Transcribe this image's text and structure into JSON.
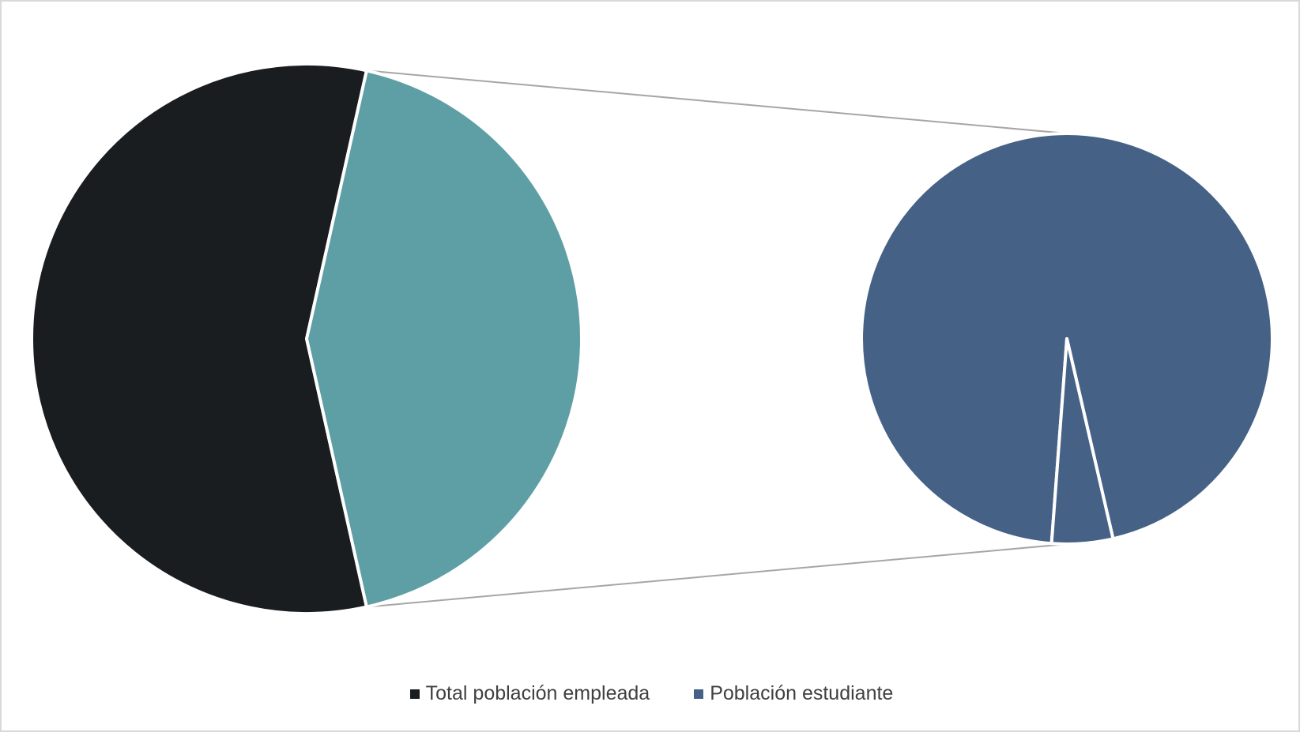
{
  "chart_data": {
    "type": "pie",
    "subtype": "pie-of-pie",
    "title": "",
    "series": [
      {
        "name": "Total población empleada",
        "values": [
          {
            "label": "Total población empleada",
            "value": 57.0,
            "unit": "%",
            "color": "#1a1d20"
          },
          {
            "label": "Población estudiante",
            "value": 43.0,
            "unit": "%",
            "color": "#5e9fa6"
          }
        ]
      },
      {
        "name": "Población estudiante",
        "values": [
          {
            "label": "Población estudiante",
            "value": 95.2,
            "unit": "%",
            "color": "#466186"
          },
          {
            "label": "Población estudiante",
            "value": 4.8,
            "unit": "%",
            "color": "#466186"
          }
        ]
      }
    ],
    "legend": {
      "position": "bottom",
      "items": [
        {
          "label": "Total población empleada",
          "color": "#1a1d20"
        },
        {
          "label": "Población estudiante",
          "color": "#466186"
        }
      ]
    },
    "connector_color": "#a6a6a6",
    "slice_border_color": "#ffffff"
  }
}
